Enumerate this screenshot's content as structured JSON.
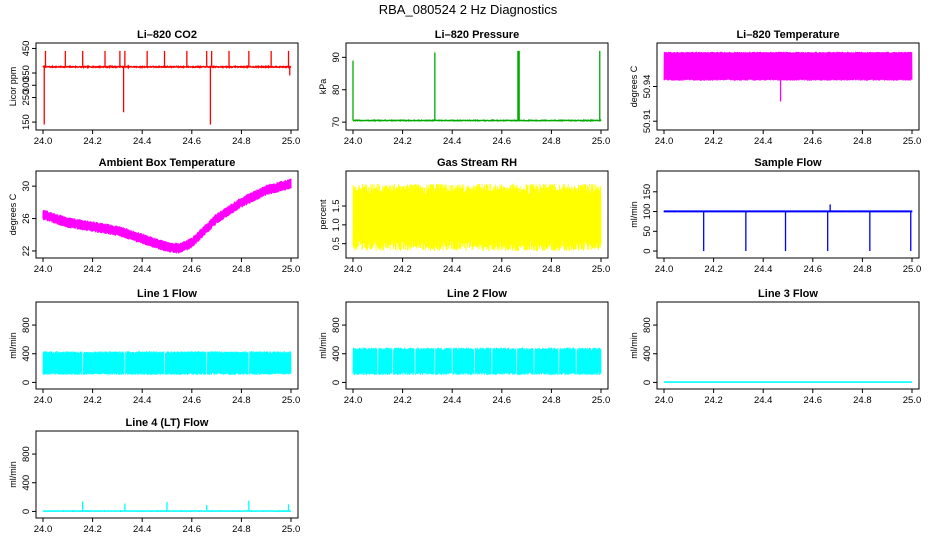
{
  "figure": {
    "title": "RBA_080524  2 Hz Diagnostics"
  },
  "chart_data": [
    {
      "type": "line",
      "title": "Li–820 CO2",
      "xlabel": "",
      "ylabel": "Licor ppm",
      "color": "#ff0000",
      "xlim": [
        24.0,
        25.0
      ],
      "ylim": [
        130,
        460
      ],
      "xticks": [
        24.0,
        24.2,
        24.4,
        24.6,
        24.8,
        25.0
      ],
      "xtick_labels": [
        "24.0",
        "24.2",
        "24.4",
        "24.6",
        "24.8",
        "25.0"
      ],
      "yticks": [
        150,
        250,
        300,
        350,
        450
      ],
      "ytick_labels": [
        "150",
        "250",
        "300",
        "350",
        "450"
      ],
      "series": [
        {
          "name": "CO2",
          "pattern": "baseline_spikes",
          "baseline": 375,
          "noise": 4,
          "events": [
            {
              "x": 24.005,
              "y": 140
            },
            {
              "x": 24.01,
              "y": 440
            },
            {
              "x": 24.09,
              "y": 440
            },
            {
              "x": 24.16,
              "y": 440
            },
            {
              "x": 24.25,
              "y": 440
            },
            {
              "x": 24.31,
              "y": 440
            },
            {
              "x": 24.325,
              "y": 190
            },
            {
              "x": 24.33,
              "y": 440
            },
            {
              "x": 24.42,
              "y": 440
            },
            {
              "x": 24.49,
              "y": 440
            },
            {
              "x": 24.58,
              "y": 440
            },
            {
              "x": 24.66,
              "y": 440
            },
            {
              "x": 24.675,
              "y": 140
            },
            {
              "x": 24.68,
              "y": 440
            },
            {
              "x": 24.75,
              "y": 440
            },
            {
              "x": 24.83,
              "y": 440
            },
            {
              "x": 24.92,
              "y": 440
            },
            {
              "x": 24.99,
              "y": 440
            },
            {
              "x": 24.995,
              "y": 340
            }
          ]
        }
      ]
    },
    {
      "type": "line",
      "title": "Li–820 Pressure",
      "xlabel": "",
      "ylabel": "kPa",
      "color": "#00aa00",
      "xlim": [
        24.0,
        25.0
      ],
      "ylim": [
        68.5,
        93.5
      ],
      "xticks": [
        24.0,
        24.2,
        24.4,
        24.6,
        24.8,
        25.0
      ],
      "xtick_labels": [
        "24.0",
        "24.2",
        "24.4",
        "24.6",
        "24.8",
        "25.0"
      ],
      "yticks": [
        70,
        80,
        90
      ],
      "ytick_labels": [
        "70",
        "80",
        "90"
      ],
      "series": [
        {
          "name": "Pressure",
          "pattern": "baseline_spikes",
          "baseline": 70.5,
          "noise": 0.2,
          "events": [
            {
              "x": 24.0,
              "y": 89
            },
            {
              "x": 24.33,
              "y": 91.5
            },
            {
              "x": 24.665,
              "y": 92
            },
            {
              "x": 24.67,
              "y": 92
            },
            {
              "x": 24.995,
              "y": 92
            }
          ]
        }
      ]
    },
    {
      "type": "line",
      "title": "Li–820 Temperature",
      "xlabel": "",
      "ylabel": "degrees C",
      "color": "#ff00ff",
      "xlim": [
        24.0,
        25.0
      ],
      "ylim": [
        50.905,
        50.975
      ],
      "xticks": [
        24.0,
        24.2,
        24.4,
        24.6,
        24.8,
        25.0
      ],
      "xtick_labels": [
        "24.0",
        "24.2",
        "24.4",
        "24.6",
        "24.8",
        "25.0"
      ],
      "yticks": [
        50.91,
        50.94
      ],
      "ytick_labels": [
        "50.91",
        "50.94"
      ],
      "series": [
        {
          "name": "Temperature",
          "pattern": "band",
          "low": 50.945,
          "high": 50.97,
          "events": [
            {
              "x": 24.47,
              "y": 50.927
            }
          ]
        }
      ]
    },
    {
      "type": "line",
      "title": "Ambient Box Temperature",
      "xlabel": "",
      "ylabel": "degrees C",
      "color": "#ff00ff",
      "xlim": [
        24.0,
        25.0
      ],
      "ylim": [
        21.5,
        31.5
      ],
      "xticks": [
        24.0,
        24.2,
        24.4,
        24.6,
        24.8,
        25.0
      ],
      "xtick_labels": [
        "24.0",
        "24.2",
        "24.4",
        "24.6",
        "24.8",
        "25.0"
      ],
      "yticks": [
        22,
        26,
        30
      ],
      "ytick_labels": [
        "22",
        "26",
        "30"
      ],
      "series": [
        {
          "name": "Box temperature",
          "pattern": "thick_curve",
          "halfwidth": 0.6,
          "x": [
            24.0,
            24.1,
            24.2,
            24.3,
            24.4,
            24.5,
            24.55,
            24.6,
            24.65,
            24.7,
            24.8,
            24.9,
            25.0
          ],
          "y": [
            26.5,
            25.5,
            25.0,
            24.5,
            23.5,
            22.5,
            22.3,
            23.0,
            24.5,
            26.0,
            28.0,
            29.5,
            30.3
          ]
        }
      ]
    },
    {
      "type": "line",
      "title": "Gas Stream RH",
      "xlabel": "",
      "ylabel": "percent",
      "color": "#ffff00",
      "xlim": [
        24.0,
        25.0
      ],
      "ylim": [
        0.2,
        2.35
      ],
      "xticks": [
        24.0,
        24.2,
        24.4,
        24.6,
        24.8,
        25.0
      ],
      "xtick_labels": [
        "24.0",
        "24.2",
        "24.4",
        "24.6",
        "24.8",
        "25.0"
      ],
      "yticks": [
        0.5,
        1.0,
        1.5
      ],
      "ytick_labels": [
        "0.5",
        "1.0",
        "1.5"
      ],
      "series": [
        {
          "name": "RH",
          "pattern": "noisy_band",
          "low": 0.35,
          "high": 2.05,
          "jitter": 0.15
        }
      ]
    },
    {
      "type": "line",
      "title": "Sample Flow",
      "xlabel": "",
      "ylabel": "ml/min",
      "color": "#0000ff",
      "xlim": [
        24.0,
        25.0
      ],
      "ylim": [
        -10,
        195
      ],
      "xticks": [
        24.0,
        24.2,
        24.4,
        24.6,
        24.8,
        25.0
      ],
      "xtick_labels": [
        "24.0",
        "24.2",
        "24.4",
        "24.6",
        "24.8",
        "25.0"
      ],
      "yticks": [
        0,
        50,
        100,
        150
      ],
      "ytick_labels": [
        "0",
        "50",
        "100",
        "150"
      ],
      "series": [
        {
          "name": "Sample flow",
          "pattern": "band",
          "low": 98,
          "high": 103,
          "events": [
            {
              "x": 24.16,
              "y": 0
            },
            {
              "x": 24.33,
              "y": 0
            },
            {
              "x": 24.49,
              "y": 0
            },
            {
              "x": 24.66,
              "y": 0
            },
            {
              "x": 24.67,
              "y": 118
            },
            {
              "x": 24.83,
              "y": 0
            },
            {
              "x": 24.995,
              "y": 0
            }
          ]
        }
      ]
    },
    {
      "type": "line",
      "title": "Line 1 Flow",
      "xlabel": "",
      "ylabel": "ml/min",
      "color": "#00ffff",
      "xlim": [
        24.0,
        25.0
      ],
      "ylim": [
        -50,
        1080
      ],
      "xticks": [
        24.0,
        24.2,
        24.4,
        24.6,
        24.8,
        25.0
      ],
      "xtick_labels": [
        "24.0",
        "24.2",
        "24.4",
        "24.6",
        "24.8",
        "25.0"
      ],
      "yticks": [
        0,
        400,
        800
      ],
      "ytick_labels": [
        "0",
        "400",
        "800"
      ],
      "series": [
        {
          "name": "Line 1",
          "pattern": "noisy_band",
          "low": 110,
          "high": 430,
          "jitter": 15,
          "gaps": [
            24.16,
            24.33,
            24.49,
            24.66,
            24.83
          ]
        }
      ]
    },
    {
      "type": "line",
      "title": "Line 2 Flow",
      "xlabel": "",
      "ylabel": "ml/min",
      "color": "#00ffff",
      "xlim": [
        24.0,
        25.0
      ],
      "ylim": [
        -50,
        1080
      ],
      "xticks": [
        24.0,
        24.2,
        24.4,
        24.6,
        24.8,
        25.0
      ],
      "xtick_labels": [
        "24.0",
        "24.2",
        "24.4",
        "24.6",
        "24.8",
        "25.0"
      ],
      "yticks": [
        0,
        400,
        800
      ],
      "ytick_labels": [
        "0",
        "400",
        "800"
      ],
      "series": [
        {
          "name": "Line 2",
          "pattern": "noisy_band",
          "low": 110,
          "high": 480,
          "jitter": 20,
          "gaps": [
            24.16,
            24.33,
            24.49,
            24.66,
            24.83,
            24.1,
            24.25,
            24.4,
            24.56,
            24.73,
            24.9
          ]
        }
      ]
    },
    {
      "type": "line",
      "title": "Line 3 Flow",
      "xlabel": "",
      "ylabel": "ml/min",
      "color": "#00ffff",
      "xlim": [
        24.0,
        25.0
      ],
      "ylim": [
        -50,
        1080
      ],
      "xticks": [
        24.0,
        24.2,
        24.4,
        24.6,
        24.8,
        25.0
      ],
      "xtick_labels": [
        "24.0",
        "24.2",
        "24.4",
        "24.6",
        "24.8",
        "25.0"
      ],
      "yticks": [
        0,
        400,
        800
      ],
      "ytick_labels": [
        "0",
        "400",
        "800"
      ],
      "series": [
        {
          "name": "Line 3",
          "pattern": "flat",
          "baseline": 5
        }
      ]
    },
    {
      "type": "line",
      "title": "Line 4 (LT) Flow",
      "xlabel": "",
      "ylabel": "ml/min",
      "color": "#00ffff",
      "xlim": [
        24.0,
        25.0
      ],
      "ylim": [
        -50,
        1080
      ],
      "xticks": [
        24.0,
        24.2,
        24.4,
        24.6,
        24.8,
        25.0
      ],
      "xtick_labels": [
        "24.0",
        "24.2",
        "24.4",
        "24.6",
        "24.8",
        "25.0"
      ],
      "yticks": [
        0,
        400,
        800
      ],
      "ytick_labels": [
        "0",
        "400",
        "800"
      ],
      "series": [
        {
          "name": "Line 4",
          "pattern": "baseline_spikes",
          "baseline": 5,
          "noise": 6,
          "events": [
            {
              "x": 24.16,
              "y": 140
            },
            {
              "x": 24.33,
              "y": 110
            },
            {
              "x": 24.5,
              "y": 130
            },
            {
              "x": 24.66,
              "y": 90
            },
            {
              "x": 24.83,
              "y": 150
            },
            {
              "x": 24.99,
              "y": 100
            }
          ]
        }
      ]
    }
  ]
}
